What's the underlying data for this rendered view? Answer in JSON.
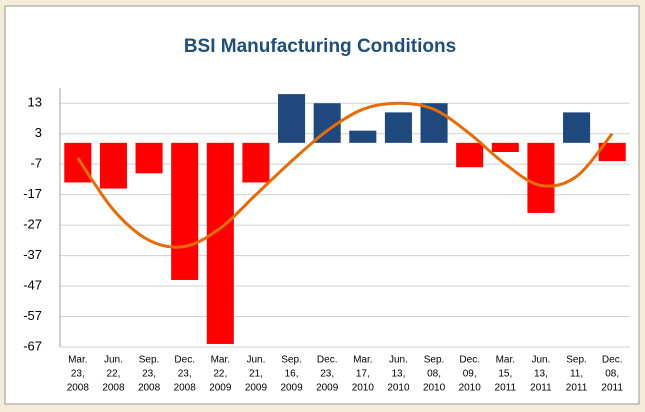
{
  "chart_data": {
    "type": "bar",
    "title": "BSI Manufacturing Conditions",
    "categories": [
      [
        "Mar.",
        "23,",
        "2008"
      ],
      [
        "Jun.",
        "22,",
        "2008"
      ],
      [
        "Sep.",
        "23,",
        "2008"
      ],
      [
        "Dec.",
        "23,",
        "2008"
      ],
      [
        "Mar.",
        "22,",
        "2009"
      ],
      [
        "Jun.",
        "21,",
        "2009"
      ],
      [
        "Sep.",
        "16,",
        "2009"
      ],
      [
        "Dec.",
        "23,",
        "2009"
      ],
      [
        "Mar.",
        "17,",
        "2010"
      ],
      [
        "Jun.",
        "13,",
        "2010"
      ],
      [
        "Sep.",
        "08,",
        "2010"
      ],
      [
        "Dec.",
        "09,",
        "2010"
      ],
      [
        "Mar.",
        "15,",
        "2011"
      ],
      [
        "Jun.",
        "13,",
        "2011"
      ],
      [
        "Sep.",
        "11,",
        "2011"
      ],
      [
        "Dec.",
        "08,",
        "2011"
      ]
    ],
    "values": [
      -13,
      -15,
      -10,
      -45,
      -66,
      -13,
      16,
      13,
      4,
      10,
      13,
      -8,
      -3,
      -23,
      10,
      -6
    ],
    "positive_color": "#1f497d",
    "negative_color": "#ff0000",
    "trend": {
      "color": "#e46c0a",
      "values": [
        -5,
        -22,
        -32,
        -34,
        -28,
        -17,
        -6,
        4,
        11,
        13,
        11,
        3,
        -7,
        -14,
        -11,
        3
      ]
    },
    "ylim": [
      -67,
      18
    ],
    "yticks": [
      13,
      3,
      -7,
      -17,
      -27,
      -37,
      -47,
      -57,
      -67
    ],
    "grid": true
  }
}
